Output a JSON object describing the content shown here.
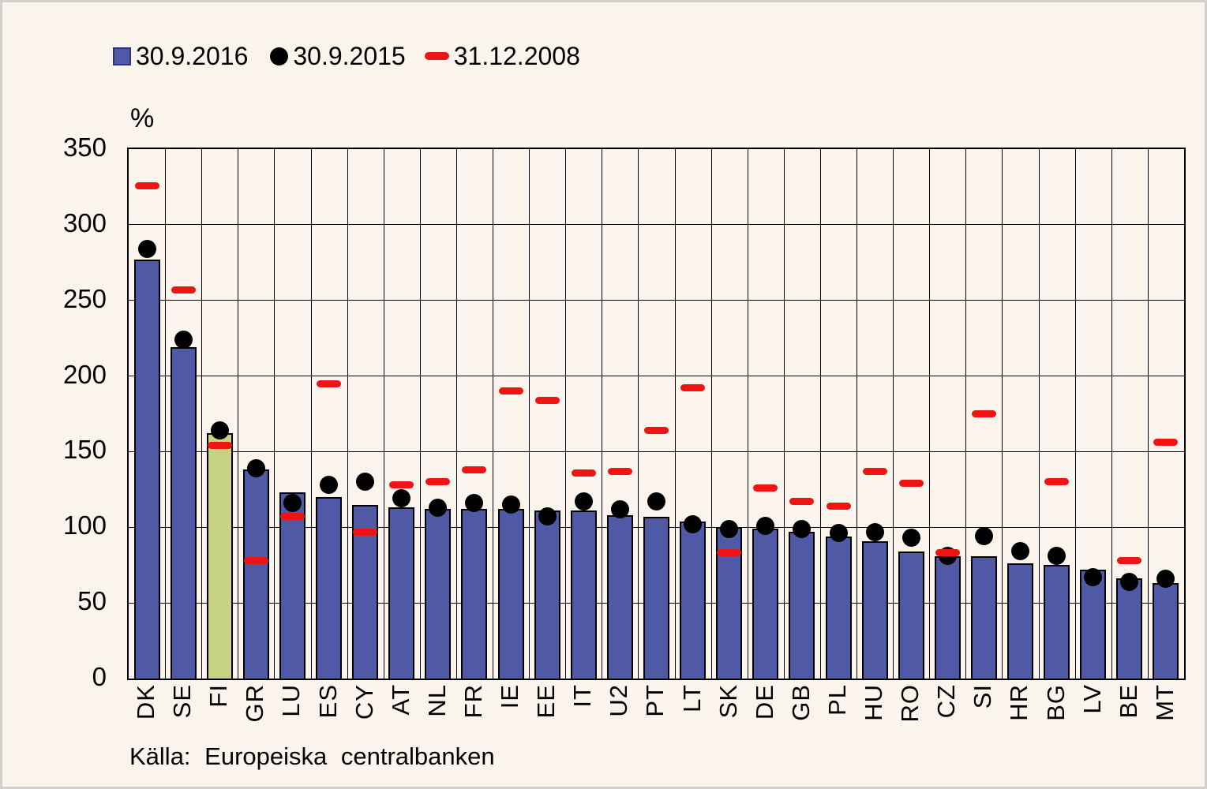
{
  "legend": {
    "items": [
      {
        "label": "30.9.2016",
        "marker": "square"
      },
      {
        "label": "30.9.2015",
        "marker": "circle"
      },
      {
        "label": "31.12.2008",
        "marker": "dash"
      }
    ]
  },
  "y_axis": {
    "unit_label": "%",
    "ticks": [
      350,
      300,
      250,
      200,
      150,
      100,
      50,
      0
    ]
  },
  "source_text": "Källa: Europeiska centralbanken",
  "chart_data": {
    "type": "bar",
    "title": "",
    "ylabel": "%",
    "ylim": [
      0,
      350
    ],
    "grid": "horizontal-and-category-dividers",
    "legend_position": "top-left",
    "highlight_category": "FI",
    "categories": [
      "DK",
      "SE",
      "FI",
      "GR",
      "LU",
      "ES",
      "CY",
      "AT",
      "NL",
      "FR",
      "IE",
      "EE",
      "IT",
      "U2",
      "PT",
      "LT",
      "SK",
      "DE",
      "GB",
      "PL",
      "HU",
      "RO",
      "CZ",
      "SI",
      "HR",
      "BG",
      "LV",
      "BE",
      "MT"
    ],
    "series": [
      {
        "name": "30.9.2016",
        "style": "bar",
        "values": [
          277,
          219,
          162,
          138,
          123,
          120,
          115,
          113,
          112,
          112,
          112,
          111,
          111,
          108,
          107,
          104,
          100,
          99,
          97,
          94,
          91,
          84,
          81,
          81,
          76,
          75,
          72,
          66,
          63
        ]
      },
      {
        "name": "30.9.2015",
        "style": "scatter-circle",
        "values": [
          284,
          224,
          164,
          139,
          116,
          128,
          130,
          119,
          113,
          116,
          115,
          107,
          117,
          112,
          117,
          102,
          99,
          101,
          99,
          96,
          97,
          93,
          81,
          94,
          84,
          81,
          67,
          64,
          66
        ]
      },
      {
        "name": "31.12.2008",
        "style": "scatter-dash",
        "values": [
          326,
          257,
          154,
          78,
          107,
          195,
          97,
          128,
          130,
          138,
          190,
          184,
          136,
          137,
          164,
          192,
          83,
          126,
          117,
          114,
          137,
          129,
          83,
          175,
          null,
          130,
          null,
          78,
          156
        ]
      }
    ],
    "colors": {
      "bar": "#4f59a5",
      "bar_highlight": "#c6d385",
      "dot": "#000000",
      "dash": "#ee1414",
      "background": "#fbf4ec",
      "frame": "#d2cfcf"
    }
  }
}
